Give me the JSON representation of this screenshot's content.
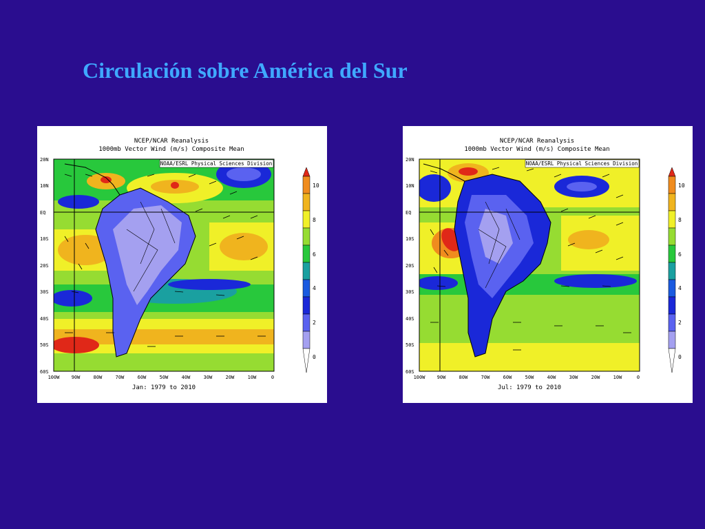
{
  "slide": {
    "title": "Circulación sobre América del Sur"
  },
  "maps": [
    {
      "id": "jan",
      "header_line1": "NCEP/NCAR Reanalysis",
      "header_line2": "1000mb Vector Wind (m/s) Composite Mean",
      "credit": "NOAA/ESRL Physical Sciences Division",
      "footer": "Jan: 1979 to 2010",
      "lon_ticks": [
        "100W",
        "90W",
        "80W",
        "70W",
        "60W",
        "50W",
        "40W",
        "30W",
        "20W",
        "10W",
        "0"
      ],
      "lat_ticks": [
        "20N",
        "10N",
        "EQ",
        "10S",
        "20S",
        "30S",
        "40S",
        "50S",
        "60S"
      ],
      "colorbar_ticks": [
        "10",
        "8",
        "6",
        "4",
        "2",
        "0"
      ]
    },
    {
      "id": "jul",
      "header_line1": "NCEP/NCAR Reanalysis",
      "header_line2": "1000mb Vector Wind (m/s) Composite Mean",
      "credit": "NOAA/ESRL Physical Sciences Division",
      "footer": "Jul: 1979 to 2010",
      "lon_ticks": [
        "100W",
        "90W",
        "80W",
        "70W",
        "60W",
        "50W",
        "40W",
        "30W",
        "20W",
        "10W",
        "0"
      ],
      "lat_ticks": [
        "20N",
        "10N",
        "EQ",
        "10S",
        "20S",
        "30S",
        "40S",
        "50S",
        "60S"
      ],
      "colorbar_ticks": [
        "10",
        "8",
        "6",
        "4",
        "2",
        "0"
      ]
    }
  ],
  "colors": {
    "background": "#2a0d8f",
    "title": "#3fa9ff",
    "scale": [
      "#a4a0f0",
      "#5a62f0",
      "#1a28d8",
      "#1aa0a0",
      "#28c83c",
      "#96dc32",
      "#f0f028",
      "#f0b41e",
      "#f08c1e",
      "#e02818"
    ]
  }
}
